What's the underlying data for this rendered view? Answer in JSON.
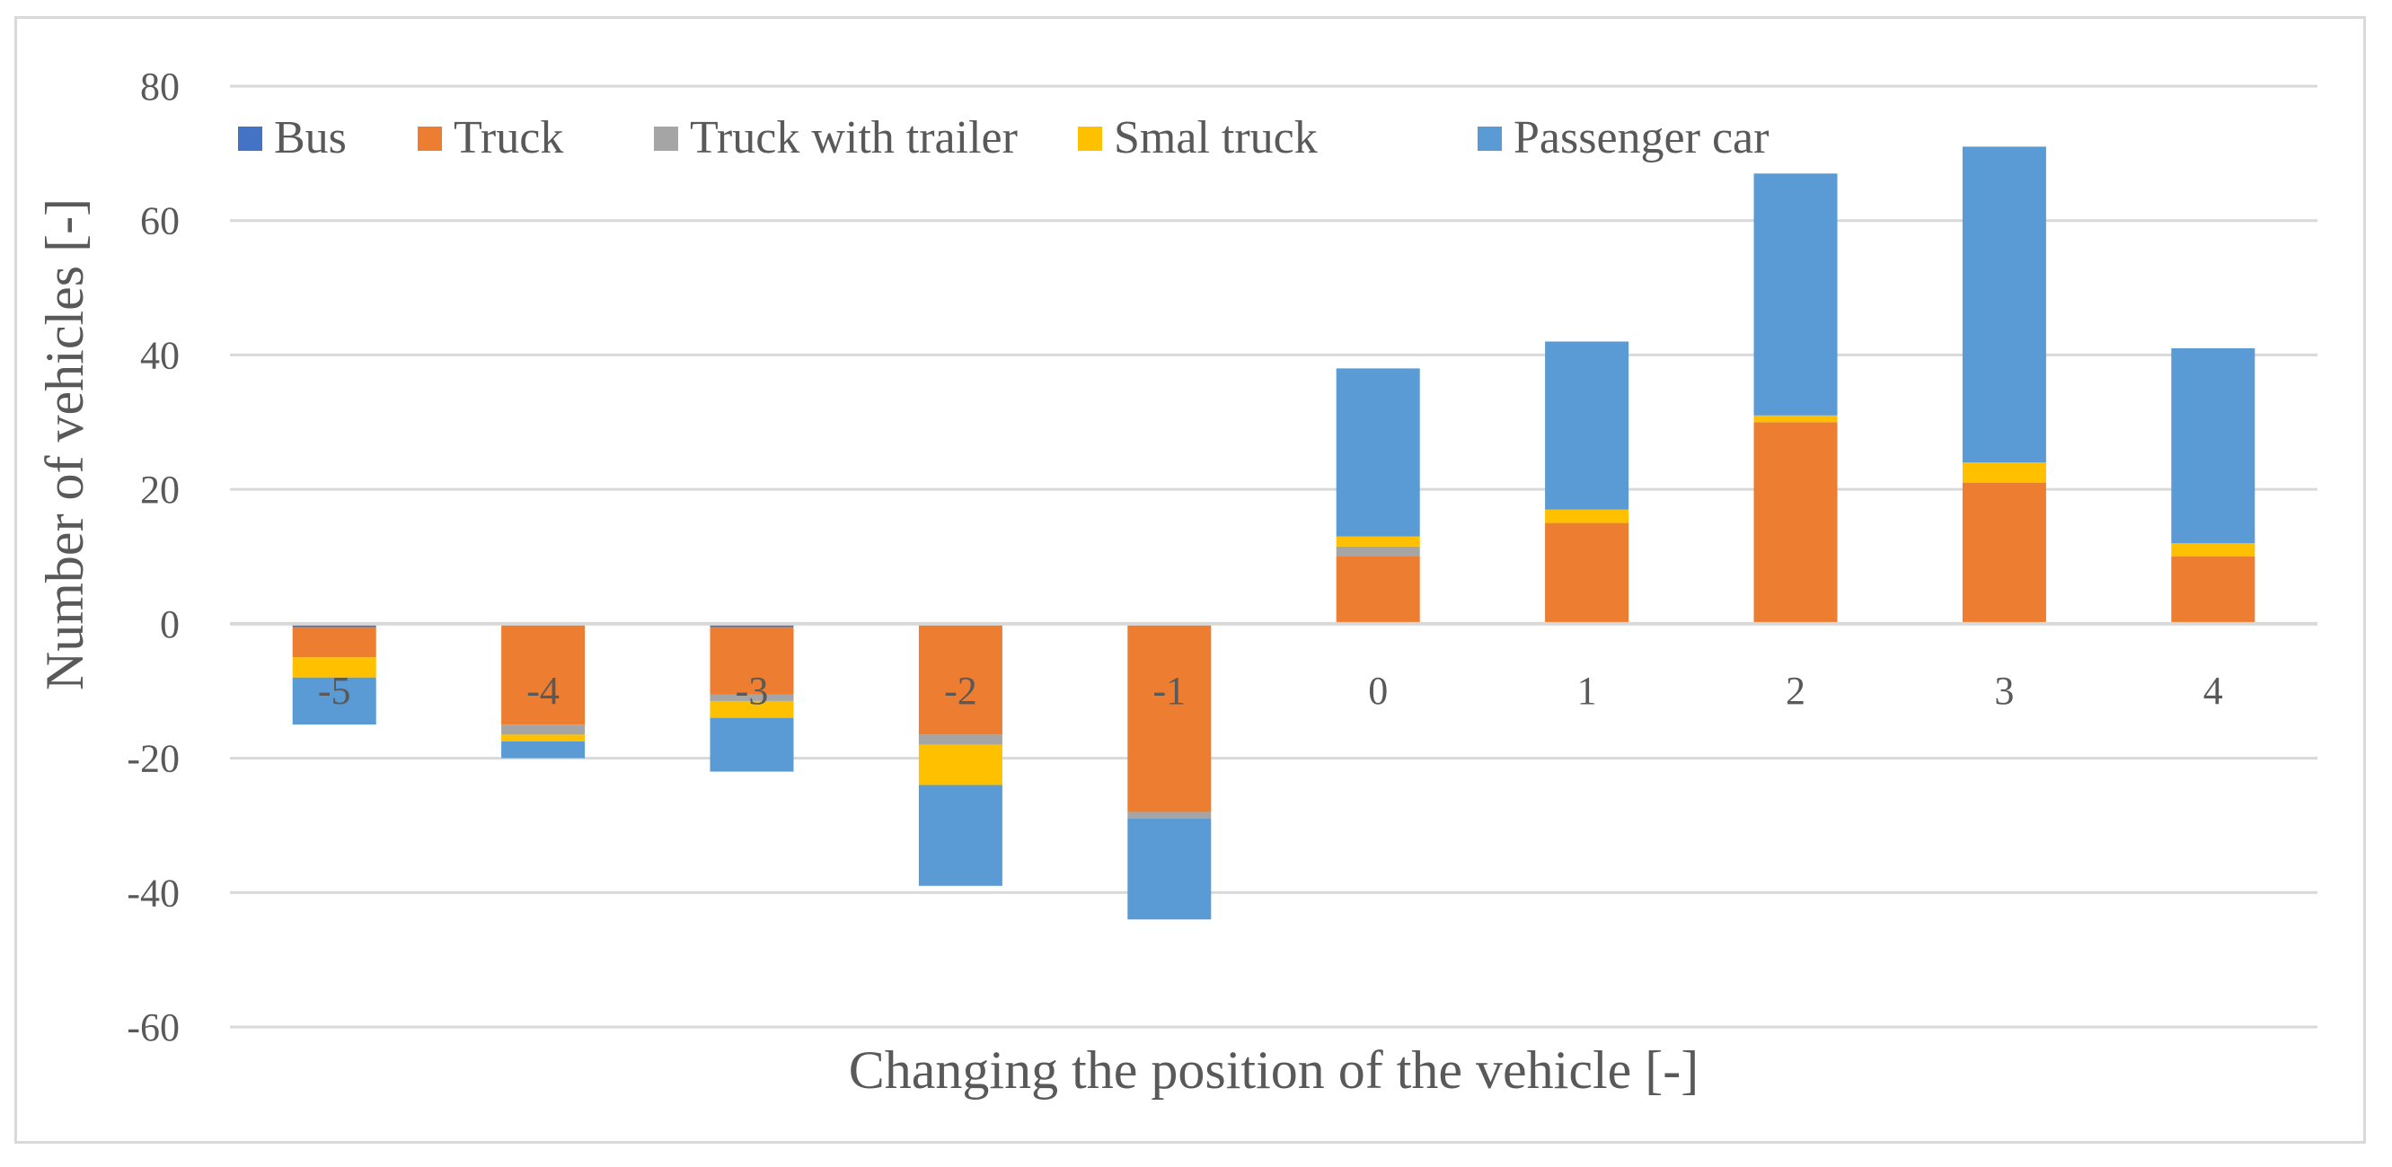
{
  "chart_data": {
    "type": "bar",
    "stacked": true,
    "title": "",
    "xlabel": "Changing the position of the vehicle [-]",
    "ylabel": "Number of vehicles [-]",
    "ylim": [
      -60,
      80
    ],
    "yticks": [
      -60,
      -40,
      -20,
      0,
      20,
      40,
      60,
      80
    ],
    "grid": true,
    "legend_position": "top",
    "categories": [
      "-5",
      "-4",
      "-3",
      "-2",
      "-1",
      "0",
      "1",
      "2",
      "3",
      "4"
    ],
    "series": [
      {
        "name": "Bus",
        "color": "#4472c4",
        "values": [
          -0.5,
          0,
          -0.5,
          0,
          0,
          0,
          0,
          0,
          0,
          0
        ]
      },
      {
        "name": "Truck",
        "color": "#ed7d31",
        "values": [
          -4.5,
          -15,
          -10,
          -16.5,
          -28,
          10,
          15,
          30,
          21,
          10
        ]
      },
      {
        "name": "Truck with trailer",
        "color": "#a5a5a5",
        "values": [
          0,
          -1.5,
          -1,
          -1.5,
          -1,
          1.5,
          0,
          0,
          0,
          0
        ]
      },
      {
        "name": "Smal truck",
        "color": "#ffc000",
        "values": [
          -3,
          -1,
          -2.5,
          -6,
          0,
          1.5,
          2,
          1,
          3,
          2
        ]
      },
      {
        "name": "Passenger car",
        "color": "#5b9bd5",
        "values": [
          -7,
          -2.5,
          -8,
          -15,
          -15,
          25,
          25,
          36,
          47,
          29
        ]
      }
    ]
  }
}
